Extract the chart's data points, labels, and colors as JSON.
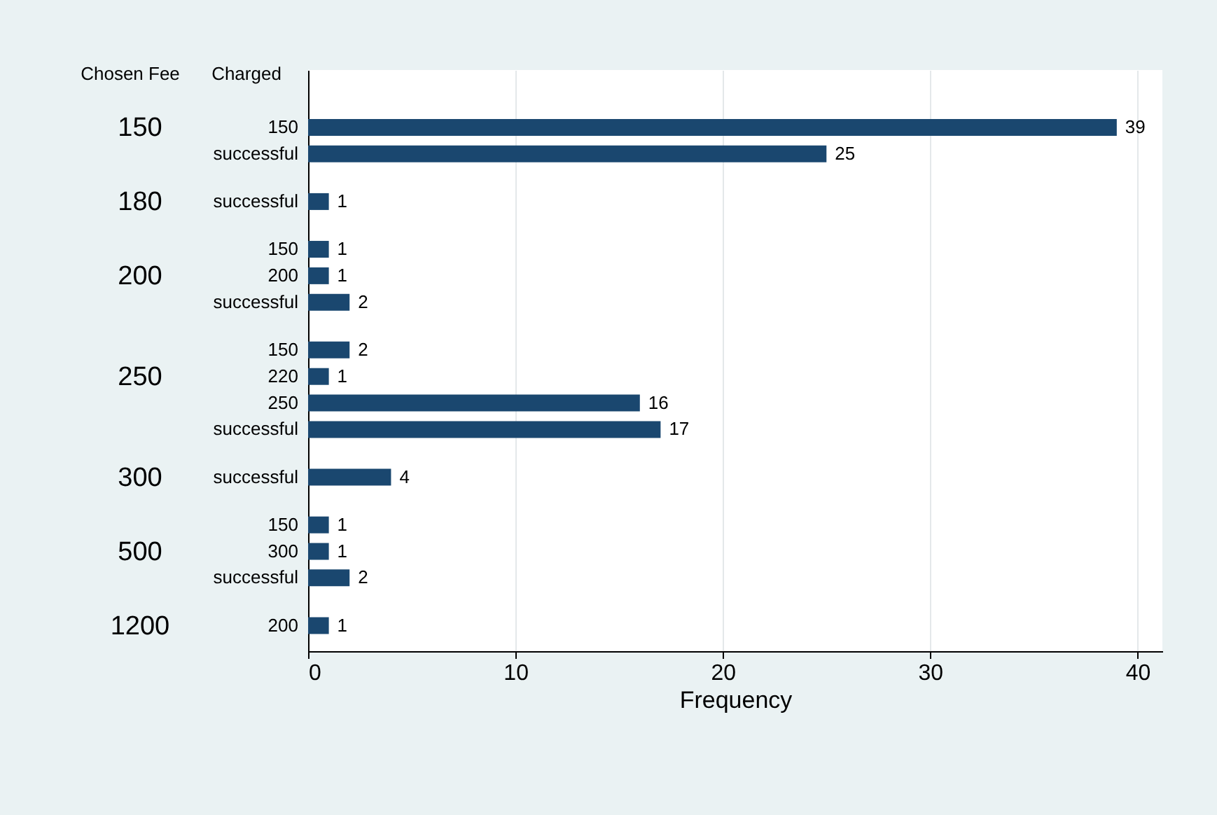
{
  "chart_data": {
    "type": "bar",
    "orientation": "horizontal",
    "ylabel": "Chosen Fee",
    "y2label": "Charged",
    "xlabel": "Frequency",
    "categories": [
      "150",
      "successful",
      "successful",
      "150",
      "200",
      "successful",
      "150",
      "220",
      "250",
      "successful",
      "successful",
      "150",
      "300",
      "successful",
      "200"
    ],
    "y2_categories": [
      "150",
      null,
      "180",
      null,
      "200",
      null,
      null,
      "250",
      null,
      null,
      "300",
      null,
      "500",
      null,
      "1200"
    ],
    "values": [
      39,
      25,
      1,
      1,
      1,
      2,
      2,
      1,
      16,
      17,
      4,
      1,
      1,
      2,
      1
    ],
    "color": "#1a476f",
    "xlim": [
      0,
      41.2
    ],
    "xticks": [
      0,
      10,
      20,
      30,
      40
    ],
    "grid": "x",
    "data_labels": true
  }
}
